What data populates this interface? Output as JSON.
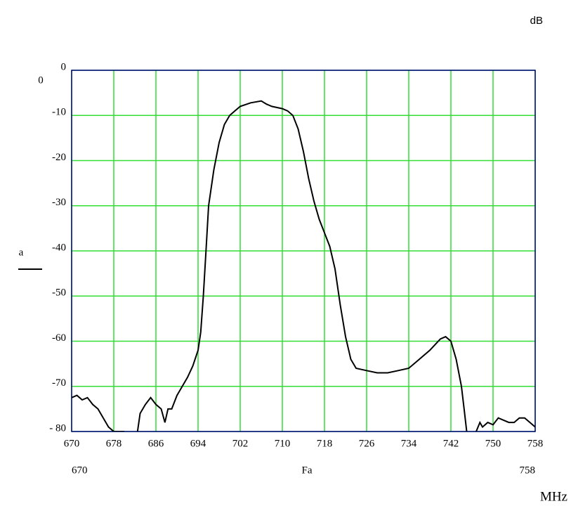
{
  "chart_data": {
    "type": "line",
    "x_label": "Fa",
    "y_label": "a",
    "annotations": [
      "dB",
      "MHz",
      "0",
      "670",
      "758"
    ],
    "xlim": [
      670,
      758
    ],
    "xticks": [
      670,
      678,
      686,
      694,
      702,
      710,
      718,
      726,
      734,
      742,
      750,
      758
    ],
    "ylim": [
      -80,
      0
    ],
    "yticks": [
      0,
      -10,
      -20,
      -30,
      -40,
      -50,
      -60,
      -70,
      {
        "value": -80,
        "label": "- 80"
      }
    ],
    "grid": true,
    "grid_color": "#33dd33",
    "frame_color": "#000080",
    "series": [
      {
        "name": "a",
        "color": "#000000",
        "x": [
          670,
          671,
          672,
          673,
          674,
          675,
          676,
          677,
          678,
          679,
          680,
          682,
          682.5,
          683,
          684,
          685,
          686,
          687,
          687.7,
          688.3,
          689,
          690,
          691,
          692,
          693,
          694,
          694.5,
          695,
          695.5,
          696,
          697,
          698,
          699,
          700,
          701,
          702,
          704,
          706,
          707,
          708,
          710,
          711,
          712,
          713,
          714,
          715,
          716,
          717,
          718,
          719,
          720,
          721,
          722,
          723,
          724,
          726,
          728,
          730,
          732,
          734,
          736,
          738,
          740,
          741,
          742,
          743,
          744,
          744.5,
          745,
          746,
          746.8,
          747.5,
          748,
          749,
          750,
          751,
          752,
          753,
          754,
          755,
          756,
          757,
          758
        ],
        "values": [
          -72.5,
          -72,
          -73,
          -72.5,
          -74,
          -75,
          -77,
          -79,
          -80,
          -80,
          -80,
          null,
          -80,
          -76,
          -74,
          -72.5,
          -74,
          -75,
          -78,
          -75,
          -75,
          -72,
          -70,
          -68,
          -65.5,
          -62,
          -58,
          -50,
          -40,
          -30,
          -22,
          -16,
          -12,
          -10,
          -9,
          -8,
          -7.2,
          -6.8,
          -7.5,
          -8,
          -8.5,
          -9,
          -10,
          -13,
          -18,
          -24,
          -29,
          -33,
          -36,
          -39,
          -44,
          -52,
          -59,
          -64,
          -66,
          -66.5,
          -67,
          -67,
          -66.5,
          -66,
          -64,
          -62,
          -59.5,
          -59,
          -60,
          -64,
          -70,
          -75,
          -80,
          null,
          -80,
          -78,
          -79,
          -78,
          -78.5,
          -77,
          -77.5,
          -78,
          -78,
          -77,
          -77,
          -78,
          -79
        ]
      }
    ]
  }
}
